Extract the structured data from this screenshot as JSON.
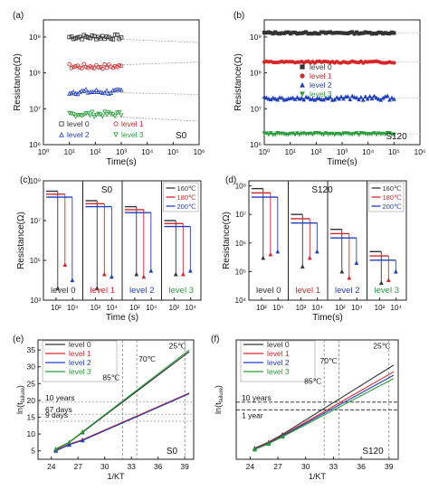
{
  "figure": {
    "panels": [
      {
        "id": "a",
        "letter": "(a)",
        "tag": "S0",
        "ylabel": "Resistance(Ω)",
        "xlabel": "Time(s)",
        "xticks": [
          "10⁰",
          "10¹",
          "10²",
          "10³",
          "10⁴",
          "10⁵",
          "10⁶"
        ],
        "yticks": [
          "10⁹",
          "10⁸",
          "10⁷",
          "10⁶"
        ],
        "legend": [
          "level 0",
          "level 1",
          "level 2",
          "level 3"
        ]
      },
      {
        "id": "b",
        "letter": "(b)",
        "tag": "S120",
        "ylabel": "Resistance(Ω)",
        "xlabel": "Time(s)",
        "xticks": [
          "10⁰",
          "10¹",
          "10²",
          "10³",
          "10⁴",
          "10⁵",
          "10⁶"
        ],
        "yticks": [
          "10⁹",
          "10⁸",
          "10⁷",
          "10⁶"
        ],
        "legend": [
          "level 0",
          "level 1",
          "level 2",
          "level 3"
        ]
      },
      {
        "id": "c",
        "letter": "(c)",
        "tag": "S0",
        "ylabel": "Resistance(Ω)",
        "xlabel": "Time (s)",
        "xticks": [
          "10²",
          "10⁴",
          "10²",
          "10⁴",
          "10²",
          "10⁴",
          "10²",
          "10⁴"
        ],
        "yticks": [
          "10⁹",
          "10⁷",
          "10⁵",
          "10³"
        ],
        "legend": [
          "160℃",
          "180℃",
          "200℃"
        ],
        "sub_labels": [
          "level 0",
          "level 1",
          "level 2",
          "level 3"
        ]
      },
      {
        "id": "d",
        "letter": "(d)",
        "tag": "S120",
        "ylabel": "Resistance(Ω)",
        "xlabel": "Time(s)",
        "xticks": [
          "10²",
          "10⁴",
          "10²",
          "10⁴",
          "10²",
          "10⁴",
          "10²",
          "10⁴"
        ],
        "yticks": [
          "10⁸",
          "10⁷",
          "10⁶",
          "10⁵",
          "10⁴"
        ],
        "legend": [
          "160℃",
          "180℃",
          "200℃"
        ],
        "sub_labels": [
          "level 0",
          "level 1",
          "level 2",
          "level 3"
        ]
      },
      {
        "id": "e",
        "letter": "(e)",
        "tag": "S0",
        "ylabel": "ln(t_failure)",
        "xlabel": "1/KT",
        "xticks": [
          "24",
          "27",
          "30",
          "33",
          "36",
          "39"
        ],
        "yticks": [
          "5",
          "10",
          "15",
          "20",
          "25",
          "30",
          "35"
        ],
        "legend": [
          "level  0",
          "level  1",
          "level  2",
          "level  3"
        ],
        "annotations": [
          "25℃",
          "70℃",
          "85℃",
          "10 years",
          "67 days",
          "9 days"
        ]
      },
      {
        "id": "f",
        "letter": "(f)",
        "tag": "S120",
        "ylabel": "ln(t_failure)",
        "xlabel": "1/KT",
        "xticks": [
          "24",
          "27",
          "30",
          "33",
          "36",
          "39"
        ],
        "yticks": [],
        "legend": [
          "level  0",
          "level  1",
          "level  2",
          "level  3"
        ],
        "annotations": [
          "25℃",
          "70℃",
          "85℃",
          "10 years",
          "1 year"
        ]
      }
    ]
  },
  "colors": {
    "level0": "#333333",
    "level1": "#d62728",
    "level2": "#1f3fbf",
    "level3": "#2a9d3a",
    "c160": "#333333",
    "c180": "#d62728",
    "c200": "#1f3fbf"
  },
  "chart_data": [
    {
      "type": "scatter",
      "panel": "a",
      "xscale": "log",
      "yscale": "log",
      "xlim": [
        1,
        1000000
      ],
      "ylim": [
        1000000,
        3000000000
      ],
      "series": [
        {
          "name": "level 0",
          "marker": "open-square",
          "x_range": [
            10,
            1000
          ],
          "y_level": 1000000000,
          "extrapolated_at_1e6": 700000000
        },
        {
          "name": "level 1",
          "marker": "open-circle",
          "x_range": [
            10,
            1000
          ],
          "y_level": 150000000,
          "extrapolated_at_1e6": 200000000
        },
        {
          "name": "level 2",
          "marker": "open-triangle-up",
          "x_range": [
            10,
            1000
          ],
          "y_level": 30000000,
          "extrapolated_at_1e6": 25000000
        },
        {
          "name": "level 3",
          "marker": "open-triangle-down",
          "x_range": [
            10,
            1000
          ],
          "y_level": 7000000,
          "extrapolated_at_1e6": 4500000
        }
      ]
    },
    {
      "type": "scatter",
      "panel": "b",
      "xscale": "log",
      "yscale": "log",
      "xlim": [
        1,
        1000000
      ],
      "ylim": [
        1000000,
        3000000000
      ],
      "series": [
        {
          "name": "level 0",
          "marker": "filled-square",
          "x_range": [
            1,
            100000
          ],
          "y_level": 1300000000
        },
        {
          "name": "level 1",
          "marker": "filled-circle",
          "x_range": [
            1,
            100000
          ],
          "y_level": 200000000
        },
        {
          "name": "level 2",
          "marker": "filled-triangle-up",
          "x_range": [
            1,
            100000
          ],
          "y_level": 20000000
        },
        {
          "name": "level 3",
          "marker": "filled-triangle-down",
          "x_range": [
            1,
            100000
          ],
          "y_level": 2000000
        }
      ]
    },
    {
      "type": "line",
      "panel": "c",
      "yscale": "log",
      "ylim": [
        1000,
        1000000000
      ],
      "sub_panels": [
        {
          "label": "level 0",
          "initial": 300000000,
          "drops": [
            {
              "series": "160℃",
              "to": 4000
            },
            {
              "series": "180℃",
              "to": 60000
            },
            {
              "series": "200℃",
              "to": 10000
            }
          ]
        },
        {
          "label": "level 1",
          "initial": 100000000,
          "drops": [
            {
              "series": "160℃",
              "to": 4000
            },
            {
              "series": "180℃",
              "to": 20000
            },
            {
              "series": "200℃",
              "to": 15000
            }
          ]
        },
        {
          "label": "level 2",
          "initial": 50000000,
          "drops": [
            {
              "series": "160℃",
              "to": 20000
            },
            {
              "series": "180℃",
              "to": 15000
            },
            {
              "series": "200℃",
              "to": 30000
            }
          ]
        },
        {
          "label": "level 3",
          "initial": 10000000,
          "drops": [
            {
              "series": "160℃",
              "to": 20000
            },
            {
              "series": "180℃",
              "to": 20000
            },
            {
              "series": "200℃",
              "to": 30000
            }
          ]
        }
      ]
    },
    {
      "type": "line",
      "panel": "d",
      "yscale": "log",
      "ylim": [
        10000,
        150000000
      ],
      "sub_panels": [
        {
          "label": "level 0",
          "initial": 80000000,
          "drops": [
            {
              "series": "160℃",
              "to": 300000
            },
            {
              "series": "180℃",
              "to": 400000
            },
            {
              "series": "200℃",
              "to": 500000
            }
          ]
        },
        {
          "label": "level 1",
          "initial": 10000000,
          "drops": [
            {
              "series": "160℃",
              "to": 150000
            },
            {
              "series": "180℃",
              "to": 300000
            },
            {
              "series": "200℃",
              "to": 500000
            }
          ]
        },
        {
          "label": "level 2",
          "initial": 3000000,
          "drops": [
            {
              "series": "160℃",
              "to": 100000
            },
            {
              "series": "180℃",
              "to": 60000
            },
            {
              "series": "200℃",
              "to": 200000
            }
          ]
        },
        {
          "label": "level 3",
          "initial": 500000,
          "drops": [
            {
              "series": "160℃",
              "to": 40000
            },
            {
              "series": "180℃",
              "to": 50000
            },
            {
              "series": "200℃",
              "to": 100000
            }
          ]
        }
      ]
    },
    {
      "type": "line",
      "panel": "e",
      "xlim": [
        22.5,
        40
      ],
      "ylim": [
        2.5,
        38
      ],
      "series": [
        {
          "name": "level  0",
          "points": [
            [
              24.5,
              5.5
            ],
            [
              26,
              7.5
            ],
            [
              27.5,
              10.5
            ],
            [
              39.5,
              34.5
            ]
          ]
        },
        {
          "name": "level  1",
          "points": [
            [
              24.5,
              5.2
            ],
            [
              26,
              7.0
            ],
            [
              27.5,
              8.3
            ],
            [
              39.5,
              22.2
            ]
          ]
        },
        {
          "name": "level  2",
          "points": [
            [
              24.5,
              5.0
            ],
            [
              26,
              6.8
            ],
            [
              27.5,
              8.1
            ],
            [
              39.5,
              22.0
            ]
          ]
        },
        {
          "name": "level  3",
          "points": [
            [
              24.5,
              5.6
            ],
            [
              26,
              7.6
            ],
            [
              27.5,
              10.7
            ],
            [
              39.5,
              35.0
            ]
          ]
        }
      ],
      "hlines": [
        19.5,
        15.9,
        13.8
      ],
      "vlines": [
        32,
        33.6,
        39
      ]
    },
    {
      "type": "line",
      "panel": "f",
      "xlim": [
        22.5,
        40
      ],
      "ylim": [
        2.5,
        38
      ],
      "series": [
        {
          "name": "level  0",
          "points": [
            [
              24.5,
              5.8
            ],
            [
              26,
              7.6
            ],
            [
              27.5,
              9.9
            ],
            [
              39.5,
              30.5
            ]
          ]
        },
        {
          "name": "level  1",
          "points": [
            [
              24.5,
              5.6
            ],
            [
              26,
              7.4
            ],
            [
              27.5,
              9.6
            ],
            [
              39.5,
              28.5
            ]
          ]
        },
        {
          "name": "level  2",
          "points": [
            [
              24.5,
              5.5
            ],
            [
              26,
              7.2
            ],
            [
              27.5,
              9.4
            ],
            [
              39.5,
              27.5
            ]
          ]
        },
        {
          "name": "level  3",
          "points": [
            [
              24.5,
              5.4
            ],
            [
              26,
              7.1
            ],
            [
              27.5,
              9.2
            ],
            [
              39.5,
              26.5
            ]
          ]
        }
      ],
      "hlines": [
        19.5,
        17.2
      ],
      "vlines": [
        32,
        33.6,
        39
      ]
    }
  ]
}
